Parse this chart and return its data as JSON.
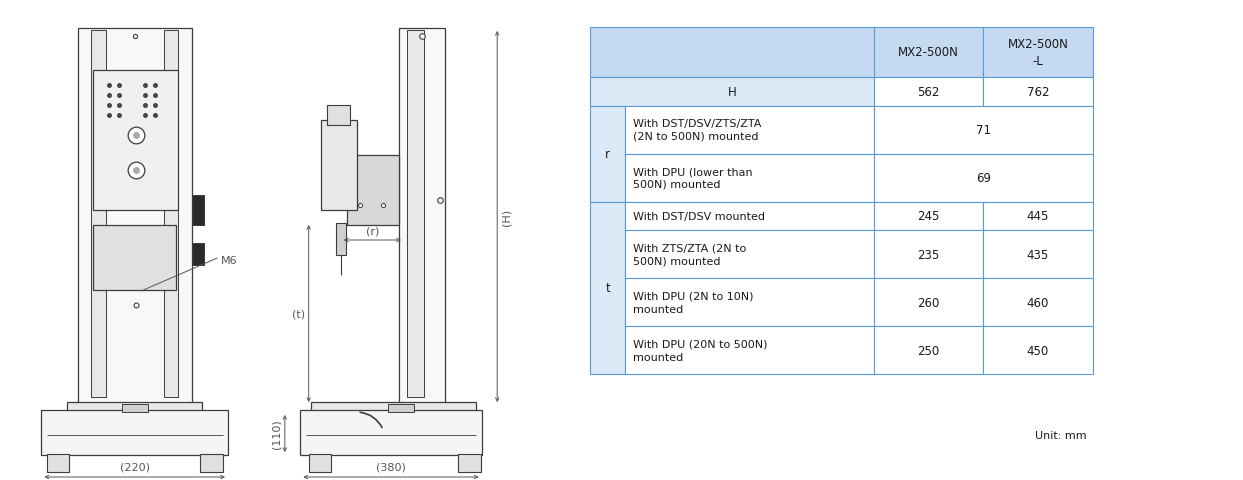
{
  "table": {
    "header_bg": "#c5d9f1",
    "h_row_bg": "#dce9f7",
    "white": "#ffffff",
    "param_bg": "#dce9f7",
    "border_color": "#5b9bd5",
    "columns": [
      "",
      "",
      "MX2-500N",
      "MX2-500N\n-L"
    ],
    "H_row": {
      "val1": "562",
      "val2": "762"
    },
    "r_rows": [
      {
        "desc": "With DST/DSV/ZTS/ZTA\n(2N to 500N) mounted",
        "val": "71"
      },
      {
        "desc": "With DPU (lower than\n500N) mounted",
        "val": "69"
      }
    ],
    "t_rows": [
      {
        "desc": "With DST/DSV mounted",
        "val1": "245",
        "val2": "445"
      },
      {
        "desc": "With ZTS/ZTA (2N to\n500N) mounted",
        "val1": "235",
        "val2": "435"
      },
      {
        "desc": "With DPU (2N to 10N)\nmounted",
        "val1": "260",
        "val2": "460"
      },
      {
        "desc": "With DPU (20N to 500N)\nmounted",
        "val1": "250",
        "val2": "450"
      }
    ]
  },
  "unit_text": "Unit: mm",
  "font_size_table": 8.5,
  "font_size_dim": 8,
  "line_color": "#3c3c3c",
  "dim_color": "#555555",
  "text_color": "#1a1a1a"
}
